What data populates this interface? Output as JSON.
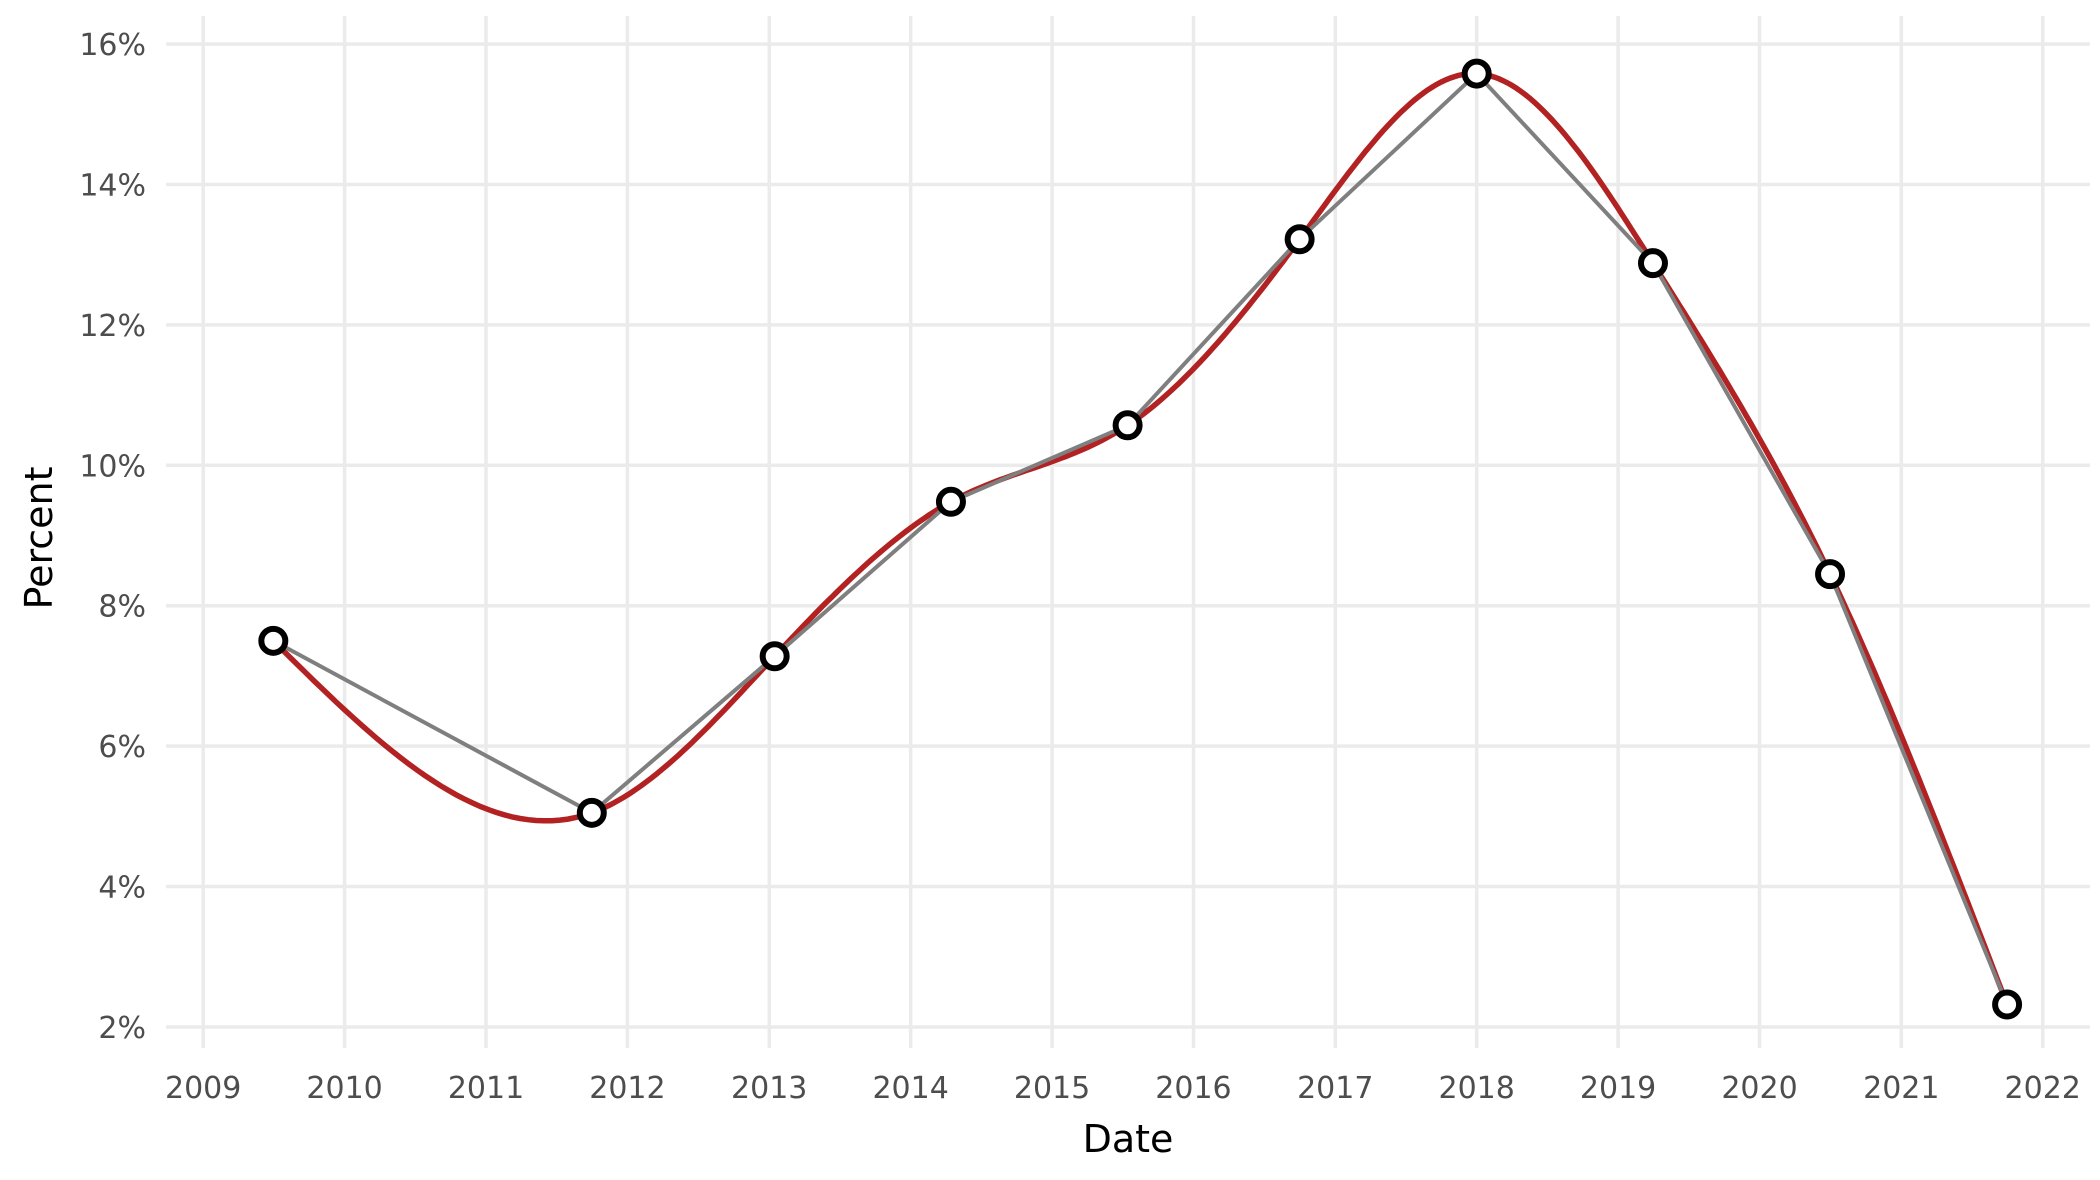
{
  "chart_data": {
    "type": "line",
    "xlabel": "Date",
    "ylabel": "Percent",
    "x_ticks": [
      "2009",
      "2010",
      "2011",
      "2012",
      "2013",
      "2014",
      "2015",
      "2016",
      "2017",
      "2018",
      "2019",
      "2020",
      "2021",
      "2022"
    ],
    "y_ticks": [
      "2%",
      "4%",
      "6%",
      "8%",
      "10%",
      "12%",
      "14%",
      "16%"
    ],
    "xlim": [
      "2008-09-27",
      "2022-05-03"
    ],
    "ylim": [
      1.7,
      16.4
    ],
    "grid": true,
    "legend": "none",
    "x": [
      "2009-07-01",
      "2011-10-01",
      "2013-01-15",
      "2014-04-15",
      "2015-07-15",
      "2016-10-01",
      "2018-01-01",
      "2019-04-01",
      "2020-07-01",
      "2021-10-01"
    ],
    "series": [
      {
        "values": [
          7.5,
          5.05,
          7.28,
          9.48,
          10.57,
          13.22,
          15.58,
          12.88,
          8.45,
          2.32
        ],
        "style": "straight line with points",
        "color": "#7f7f7f",
        "point_fill": "#ffffff",
        "point_stroke": "#000000"
      },
      {
        "values": [
          7.5,
          5.05,
          7.28,
          9.48,
          10.57,
          13.22,
          15.58,
          12.88,
          8.45,
          2.32
        ],
        "style": "smooth spline",
        "color": "#b22222"
      }
    ]
  }
}
